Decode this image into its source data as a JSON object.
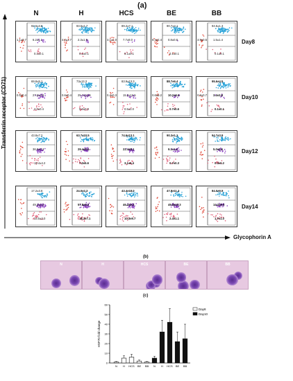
{
  "panel_a": {
    "label": "(a)",
    "columns": [
      "N",
      "H",
      "HCS",
      "BE",
      "BB"
    ],
    "days": [
      "Day8",
      "Day10",
      "Day12",
      "Day14"
    ],
    "y_axis_label": "Transferrin receptor (CD71)",
    "x_axis_label": "Glycophorin A",
    "rows": [
      [
        {
          "ul": "1.1±0.7",
          "ur": "92.6±3.8",
          "mr": "6.2±4.1",
          "lr": "0.1±0.1"
        },
        {
          "ul": "4.2±1.7",
          "ur": "93.5±1.7",
          "mr": "2.3±1.9",
          "lr": "0.1±0.1"
        },
        {
          "ul": "3.1±1.0",
          "ur": "89.2±7.1",
          "mr": "7.7±8.0",
          "lr": "0.1±0.1"
        },
        {
          "ul": "8.4±2.4",
          "ur": "90.7±2.1",
          "mr": "0.8±0.8",
          "lr": "0.1±0.1"
        },
        {
          "ul": "3.9±0.5",
          "ur": "94.5±1.3",
          "mr": "1.5±1.4",
          "lr": "0.1±0.1"
        }
      ],
      [
        {
          "ul": "0.5±0.4",
          "ur": "69.8±5.1",
          "mr": "27.6±4.6",
          "lr": "2.0±0.4"
        },
        {
          "ul": "0.6±0.4",
          "ur": "73±13.3",
          "mr": "25.7±12.9",
          "lr": "0.6±0.3"
        },
        {
          "ul": "0.4±0.3",
          "ur": "83.9±13.3",
          "mr": "15.2±12.5",
          "lr": "0.5±1.0"
        },
        {
          "ul": "0.6±0.2",
          "ur": "88.7±6.4",
          "mr": "10.2±6.0",
          "lr": "0.7±0.6"
        },
        {
          "ul": "0.9±0.7",
          "ur": "95.6±4.5",
          "mr": "3.4±3.8",
          "lr": "0.1±0.1"
        }
      ],
      [
        {
          "ul": "",
          "ur": "43.8±7.2",
          "mr": "36.9±3.3",
          "lr": "19.4±4.2"
        },
        {
          "ul": "",
          "ur": "63.7±10.5",
          "mr": "29.4±5.4",
          "lr": "7.0±5.6"
        },
        {
          "ul": "",
          "ur": "74.6±13.1",
          "mr": "22.4±8.1",
          "lr": "3.1±5.4"
        },
        {
          "ul": "",
          "ur": "90.3±1.1",
          "mr": "9.1±1.2",
          "lr": "0.7±0.3"
        },
        {
          "ul": "",
          "ur": "94.7±3.9",
          "mr": "5.0±3.6",
          "lr": "0.3±0.2"
        }
      ],
      [
        {
          "ul": "",
          "ur": "17.2±3.6",
          "mr": "49.3±4.4",
          "lr": "33.5±2.0"
        },
        {
          "ul": "",
          "ur": "24.0±2.3",
          "mr": "57.8±6.2",
          "lr": "18.2±7.1"
        },
        {
          "ul": "",
          "ur": "43.4±18.0",
          "mr": "46.3±9.2",
          "lr": "10.3±9.7"
        },
        {
          "ul": "",
          "ur": "47.8±11.3",
          "mr": "49.9±10.3",
          "lr": "2.4±1.1"
        },
        {
          "ul": "",
          "ur": "84.0±9.9",
          "mr": "14.2±9.0",
          "lr": "1.7±1.0"
        }
      ]
    ]
  },
  "panel_b": {
    "label": "(b)",
    "images": [
      "N",
      "H",
      "HCS",
      "BE",
      "BB"
    ]
  },
  "panel_c": {
    "label": "(c)",
    "chart_data": {
      "type": "bar",
      "ylabel": "HSP70 fold change",
      "ylim": [
        0,
        60
      ],
      "yticks": [
        0,
        10,
        20,
        30,
        40,
        50,
        60
      ],
      "categories": [
        "N",
        "H",
        "HCS",
        "BE",
        "BB",
        "N",
        "H",
        "HCS",
        "BE",
        "BB"
      ],
      "series": [
        {
          "name": "Day8",
          "color": "#ffffff",
          "values": [
            1,
            5,
            6,
            2,
            1,
            null,
            null,
            null,
            null,
            null
          ],
          "errors": [
            0.5,
            2.5,
            3,
            1,
            0.5,
            null,
            null,
            null,
            null,
            null
          ]
        },
        {
          "name": "Day10",
          "color": "#111111",
          "values": [
            null,
            null,
            null,
            null,
            null,
            5,
            32,
            42,
            22,
            25
          ],
          "errors": [
            null,
            null,
            null,
            null,
            null,
            2,
            12,
            14,
            10,
            15
          ]
        }
      ],
      "legend": [
        "Day8",
        "Day10"
      ],
      "legend_position": "top-right"
    }
  }
}
